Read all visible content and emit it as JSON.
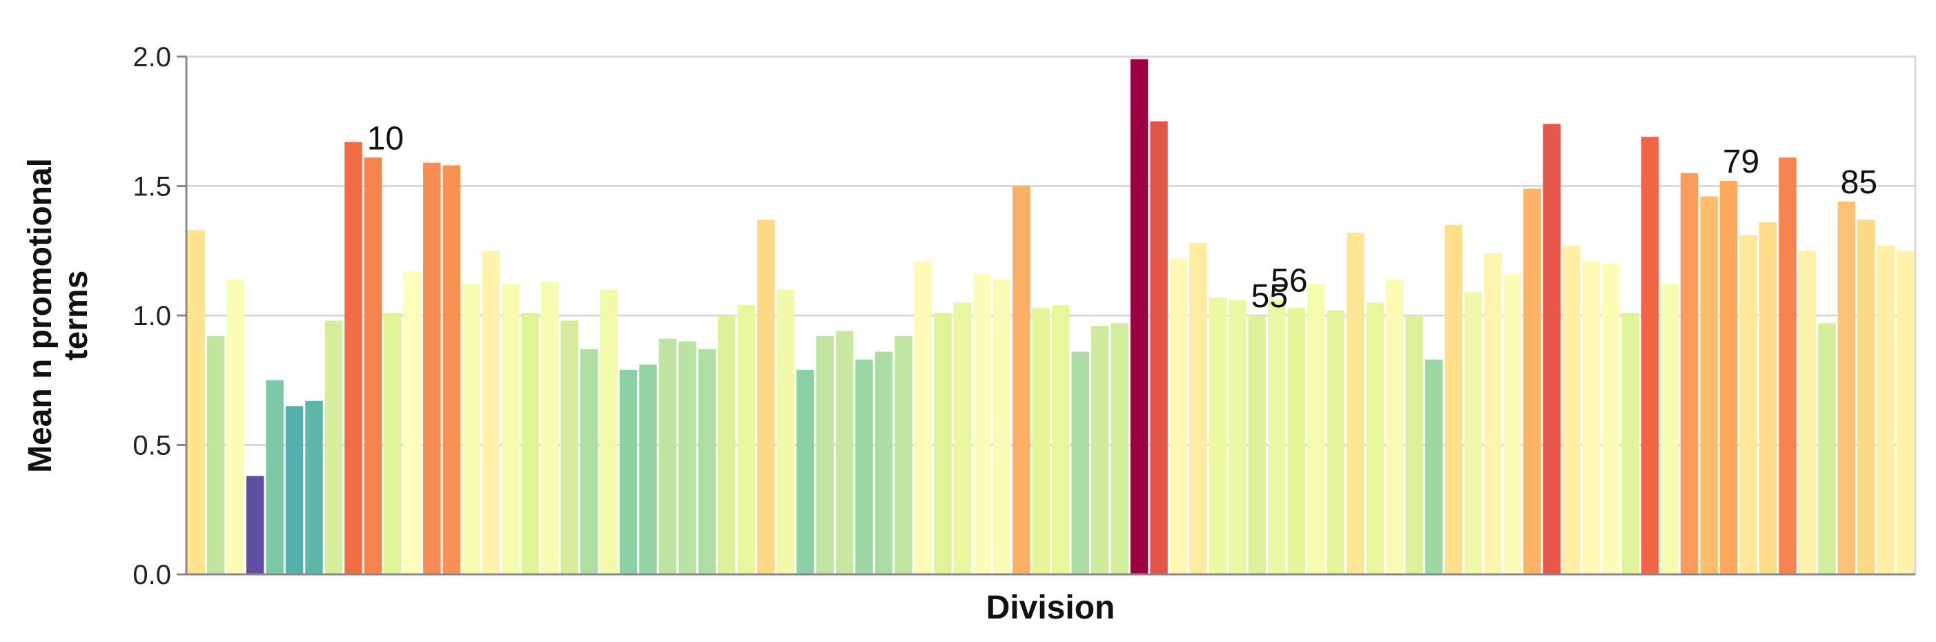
{
  "chart_data": {
    "type": "bar",
    "title": "",
    "xlabel": "Division",
    "ylabel": "Mean n promotional terms",
    "ylim": [
      0,
      2
    ],
    "yticks": [
      "0.0",
      "0.5",
      "1.0",
      "1.5",
      "2.0"
    ],
    "grid": "horizontal",
    "x_tick_labels_shown": false,
    "colormap": "spectral-reversed",
    "annotated_bars": {
      "10": "10",
      "55": "55",
      "56": "56",
      "79": "79",
      "85": "85"
    },
    "values": [
      1.33,
      0.92,
      1.14,
      0.38,
      0.75,
      0.65,
      0.67,
      0.98,
      1.67,
      1.61,
      1.01,
      1.17,
      1.59,
      1.58,
      1.12,
      1.25,
      1.12,
      1.01,
      1.13,
      0.98,
      0.87,
      1.1,
      0.79,
      0.81,
      0.91,
      0.9,
      0.87,
      1.0,
      1.04,
      1.37,
      1.1,
      0.79,
      0.92,
      0.94,
      0.83,
      0.86,
      0.92,
      1.21,
      1.01,
      1.05,
      1.16,
      1.14,
      1.5,
      1.03,
      1.04,
      0.86,
      0.96,
      0.97,
      1.99,
      1.75,
      1.22,
      1.28,
      1.07,
      1.06,
      1.0,
      1.06,
      1.03,
      1.12,
      1.02,
      1.32,
      1.05,
      1.14,
      1.0,
      0.83,
      1.35,
      1.09,
      1.24,
      1.16,
      1.49,
      1.74,
      1.27,
      1.21,
      1.2,
      1.01,
      1.69,
      1.12,
      1.55,
      1.46,
      1.52,
      1.31,
      1.36,
      1.61,
      1.25,
      0.97,
      1.44,
      1.37,
      1.27,
      1.25
    ]
  }
}
